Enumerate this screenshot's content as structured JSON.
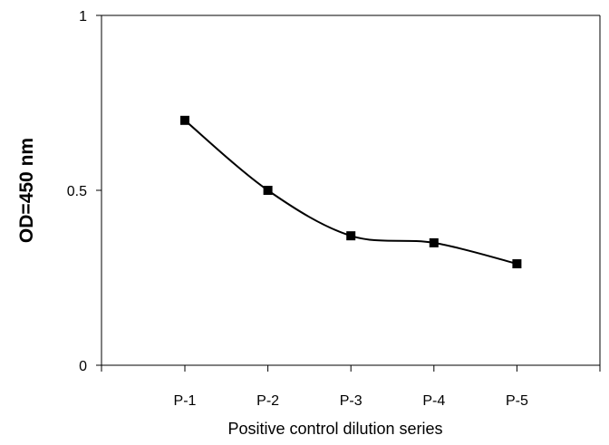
{
  "chart_data": {
    "type": "line",
    "categories": [
      "P-1",
      "P-2",
      "P-3",
      "P-4",
      "P-5"
    ],
    "series": [
      {
        "values": [
          0.7,
          0.5,
          0.37,
          0.35,
          0.29
        ]
      }
    ],
    "xlabel": "Positive control dilution series",
    "ylabel": "OD=450 nm",
    "ylim": [
      0,
      1
    ],
    "yticks": [
      0,
      0.5,
      1
    ],
    "ytick_labels": [
      "0",
      "0.5",
      "1"
    ],
    "grid": false,
    "legend": "none",
    "smooth": true,
    "marker": "square",
    "line_color": "#000000"
  }
}
